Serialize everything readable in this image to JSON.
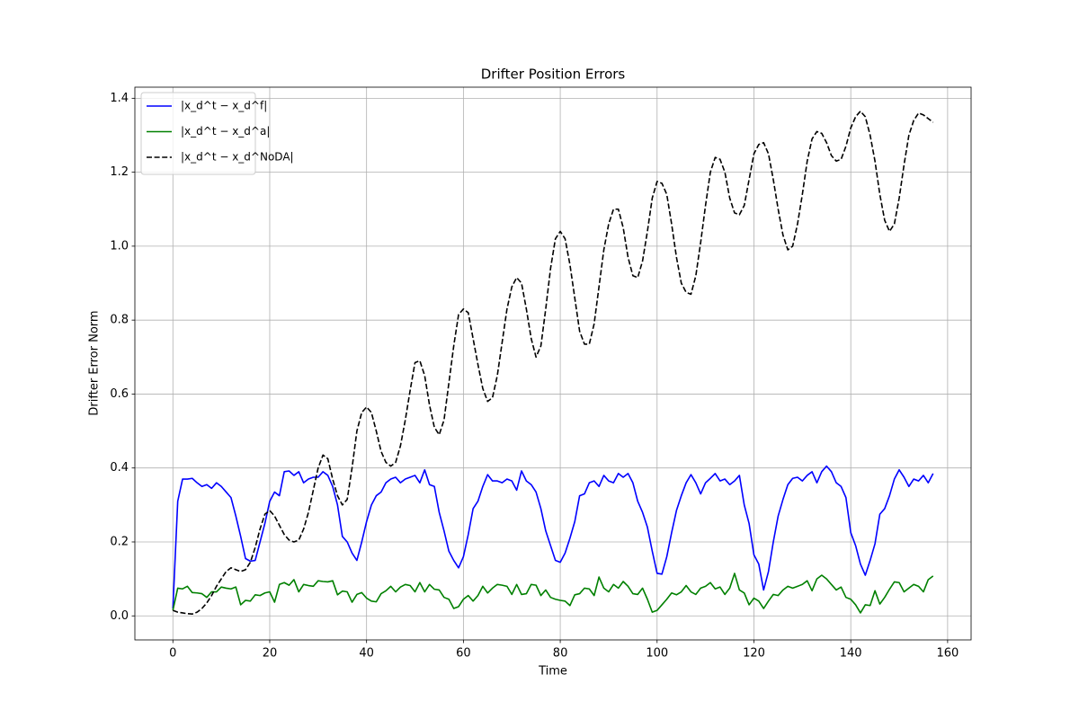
{
  "chart_data": {
    "type": "line",
    "title": "Drifter Position Errors",
    "xlabel": "Time",
    "ylabel": "Drifter Error Norm",
    "grid": true,
    "legend": "upper left",
    "xlim": [
      -7.85,
      164.85
    ],
    "ylim": [
      -0.065,
      1.43
    ],
    "xticks": [
      0,
      20,
      40,
      60,
      80,
      100,
      120,
      140,
      160
    ],
    "yticks": [
      {
        "value": 0,
        "label": "0.0"
      },
      0.2,
      0.4,
      0.6,
      0.8,
      {
        "value": 1,
        "label": "1.0"
      },
      1.2,
      1.4
    ],
    "x": [
      0,
      1,
      2,
      3,
      4,
      5,
      6,
      7,
      8,
      9,
      10,
      11,
      12,
      13,
      14,
      15,
      16,
      17,
      18,
      19,
      20,
      21,
      22,
      23,
      24,
      25,
      26,
      27,
      28,
      29,
      30,
      31,
      32,
      33,
      34,
      35,
      36,
      37,
      38,
      39,
      40,
      41,
      42,
      43,
      44,
      45,
      46,
      47,
      48,
      49,
      50,
      51,
      52,
      53,
      54,
      55,
      56,
      57,
      58,
      59,
      60,
      61,
      62,
      63,
      64,
      65,
      66,
      67,
      68,
      69,
      70,
      71,
      72,
      73,
      74,
      75,
      76,
      77,
      78,
      79,
      80,
      81,
      82,
      83,
      84,
      85,
      86,
      87,
      88,
      89,
      90,
      91,
      92,
      93,
      94,
      95,
      96,
      97,
      98,
      99,
      100,
      101,
      102,
      103,
      104,
      105,
      106,
      107,
      108,
      109,
      110,
      111,
      112,
      113,
      114,
      115,
      116,
      117,
      118,
      119,
      120,
      121,
      122,
      123,
      124,
      125,
      126,
      127,
      128,
      129,
      130,
      131,
      132,
      133,
      134,
      135,
      136,
      137,
      138,
      139,
      140,
      141,
      142,
      143,
      144,
      145,
      146,
      147,
      148,
      149,
      150,
      151,
      152,
      153,
      154,
      155,
      156,
      157
    ],
    "series": [
      {
        "name": "|x_d^t − x_d^f|",
        "color": "#0000ff",
        "dash": "solid",
        "values": [
          0.02,
          0.31,
          0.37,
          0.37,
          0.372,
          0.36,
          0.35,
          0.355,
          0.345,
          0.36,
          0.35,
          0.335,
          0.32,
          0.27,
          0.215,
          0.155,
          0.148,
          0.15,
          0.2,
          0.25,
          0.31,
          0.335,
          0.325,
          0.39,
          0.392,
          0.38,
          0.39,
          0.36,
          0.37,
          0.375,
          0.375,
          0.39,
          0.38,
          0.35,
          0.3,
          0.215,
          0.2,
          0.17,
          0.15,
          0.2,
          0.255,
          0.3,
          0.325,
          0.335,
          0.36,
          0.37,
          0.375,
          0.36,
          0.37,
          0.375,
          0.38,
          0.36,
          0.395,
          0.355,
          0.35,
          0.28,
          0.23,
          0.175,
          0.15,
          0.13,
          0.16,
          0.22,
          0.29,
          0.31,
          0.35,
          0.382,
          0.365,
          0.365,
          0.36,
          0.37,
          0.365,
          0.34,
          0.392,
          0.365,
          0.355,
          0.335,
          0.29,
          0.23,
          0.19,
          0.15,
          0.145,
          0.17,
          0.21,
          0.255,
          0.325,
          0.33,
          0.36,
          0.365,
          0.35,
          0.38,
          0.365,
          0.36,
          0.385,
          0.375,
          0.385,
          0.36,
          0.31,
          0.28,
          0.24,
          0.175,
          0.115,
          0.113,
          0.16,
          0.225,
          0.285,
          0.325,
          0.36,
          0.382,
          0.36,
          0.33,
          0.36,
          0.372,
          0.385,
          0.365,
          0.37,
          0.355,
          0.365,
          0.38,
          0.3,
          0.25,
          0.165,
          0.14,
          0.07,
          0.12,
          0.2,
          0.27,
          0.315,
          0.355,
          0.372,
          0.375,
          0.365,
          0.38,
          0.39,
          0.36,
          0.39,
          0.405,
          0.39,
          0.36,
          0.35,
          0.32,
          0.225,
          0.19,
          0.14,
          0.11,
          0.15,
          0.195,
          0.275,
          0.29,
          0.325,
          0.37,
          0.395,
          0.375,
          0.35,
          0.37,
          0.365,
          0.38,
          0.36,
          0.385
        ]
      },
      {
        "name": "|x_d^t − x_d^a|",
        "color": "#008000",
        "dash": "solid",
        "values": [
          0.015,
          0.075,
          0.073,
          0.08,
          0.063,
          0.062,
          0.06,
          0.05,
          0.065,
          0.065,
          0.078,
          0.075,
          0.073,
          0.078,
          0.03,
          0.042,
          0.04,
          0.057,
          0.055,
          0.062,
          0.065,
          0.037,
          0.085,
          0.09,
          0.083,
          0.098,
          0.065,
          0.085,
          0.082,
          0.08,
          0.095,
          0.093,
          0.092,
          0.095,
          0.057,
          0.067,
          0.065,
          0.037,
          0.058,
          0.063,
          0.048,
          0.04,
          0.038,
          0.06,
          0.068,
          0.08,
          0.065,
          0.078,
          0.085,
          0.082,
          0.065,
          0.09,
          0.065,
          0.085,
          0.072,
          0.07,
          0.05,
          0.045,
          0.02,
          0.025,
          0.045,
          0.055,
          0.04,
          0.055,
          0.08,
          0.062,
          0.075,
          0.085,
          0.083,
          0.08,
          0.058,
          0.085,
          0.058,
          0.06,
          0.085,
          0.083,
          0.055,
          0.07,
          0.05,
          0.045,
          0.042,
          0.04,
          0.028,
          0.057,
          0.06,
          0.075,
          0.073,
          0.055,
          0.105,
          0.075,
          0.065,
          0.085,
          0.075,
          0.093,
          0.08,
          0.06,
          0.058,
          0.075,
          0.045,
          0.01,
          0.015,
          0.03,
          0.045,
          0.062,
          0.057,
          0.065,
          0.082,
          0.065,
          0.058,
          0.075,
          0.08,
          0.09,
          0.073,
          0.078,
          0.058,
          0.075,
          0.115,
          0.07,
          0.062,
          0.03,
          0.048,
          0.04,
          0.02,
          0.04,
          0.058,
          0.055,
          0.07,
          0.08,
          0.075,
          0.08,
          0.085,
          0.095,
          0.068,
          0.1,
          0.11,
          0.1,
          0.085,
          0.07,
          0.078,
          0.05,
          0.045,
          0.03,
          0.008,
          0.03,
          0.028,
          0.068,
          0.032,
          0.05,
          0.072,
          0.092,
          0.09,
          0.065,
          0.075,
          0.085,
          0.08,
          0.065,
          0.098,
          0.108
        ]
      },
      {
        "name": "|x_d^t − x_d^NoDA|",
        "color": "#000000",
        "dash": "dashed",
        "values": [
          0.015,
          0.01,
          0.008,
          0.006,
          0.005,
          0.01,
          0.02,
          0.035,
          0.055,
          0.08,
          0.1,
          0.12,
          0.13,
          0.125,
          0.12,
          0.125,
          0.145,
          0.185,
          0.235,
          0.275,
          0.285,
          0.27,
          0.245,
          0.22,
          0.205,
          0.2,
          0.205,
          0.235,
          0.28,
          0.34,
          0.4,
          0.435,
          0.425,
          0.37,
          0.325,
          0.3,
          0.315,
          0.4,
          0.5,
          0.55,
          0.565,
          0.55,
          0.5,
          0.445,
          0.415,
          0.405,
          0.415,
          0.46,
          0.53,
          0.61,
          0.685,
          0.69,
          0.65,
          0.57,
          0.51,
          0.49,
          0.53,
          0.63,
          0.73,
          0.815,
          0.83,
          0.82,
          0.75,
          0.68,
          0.615,
          0.58,
          0.59,
          0.65,
          0.74,
          0.83,
          0.89,
          0.915,
          0.9,
          0.83,
          0.75,
          0.7,
          0.73,
          0.83,
          0.94,
          1.02,
          1.04,
          1.02,
          0.95,
          0.86,
          0.77,
          0.735,
          0.735,
          0.79,
          0.89,
          0.99,
          1.06,
          1.1,
          1.1,
          1.05,
          0.97,
          0.92,
          0.915,
          0.96,
          1.04,
          1.13,
          1.175,
          1.17,
          1.14,
          1.06,
          0.97,
          0.9,
          0.875,
          0.87,
          0.92,
          1.01,
          1.11,
          1.2,
          1.24,
          1.235,
          1.2,
          1.13,
          1.09,
          1.085,
          1.11,
          1.18,
          1.25,
          1.275,
          1.28,
          1.25,
          1.18,
          1.1,
          1.03,
          0.99,
          1.0,
          1.06,
          1.14,
          1.23,
          1.29,
          1.31,
          1.305,
          1.28,
          1.245,
          1.23,
          1.235,
          1.27,
          1.32,
          1.35,
          1.365,
          1.35,
          1.3,
          1.23,
          1.14,
          1.07,
          1.04,
          1.06,
          1.13,
          1.22,
          1.3,
          1.34,
          1.36,
          1.355,
          1.345,
          1.335
        ]
      }
    ]
  }
}
